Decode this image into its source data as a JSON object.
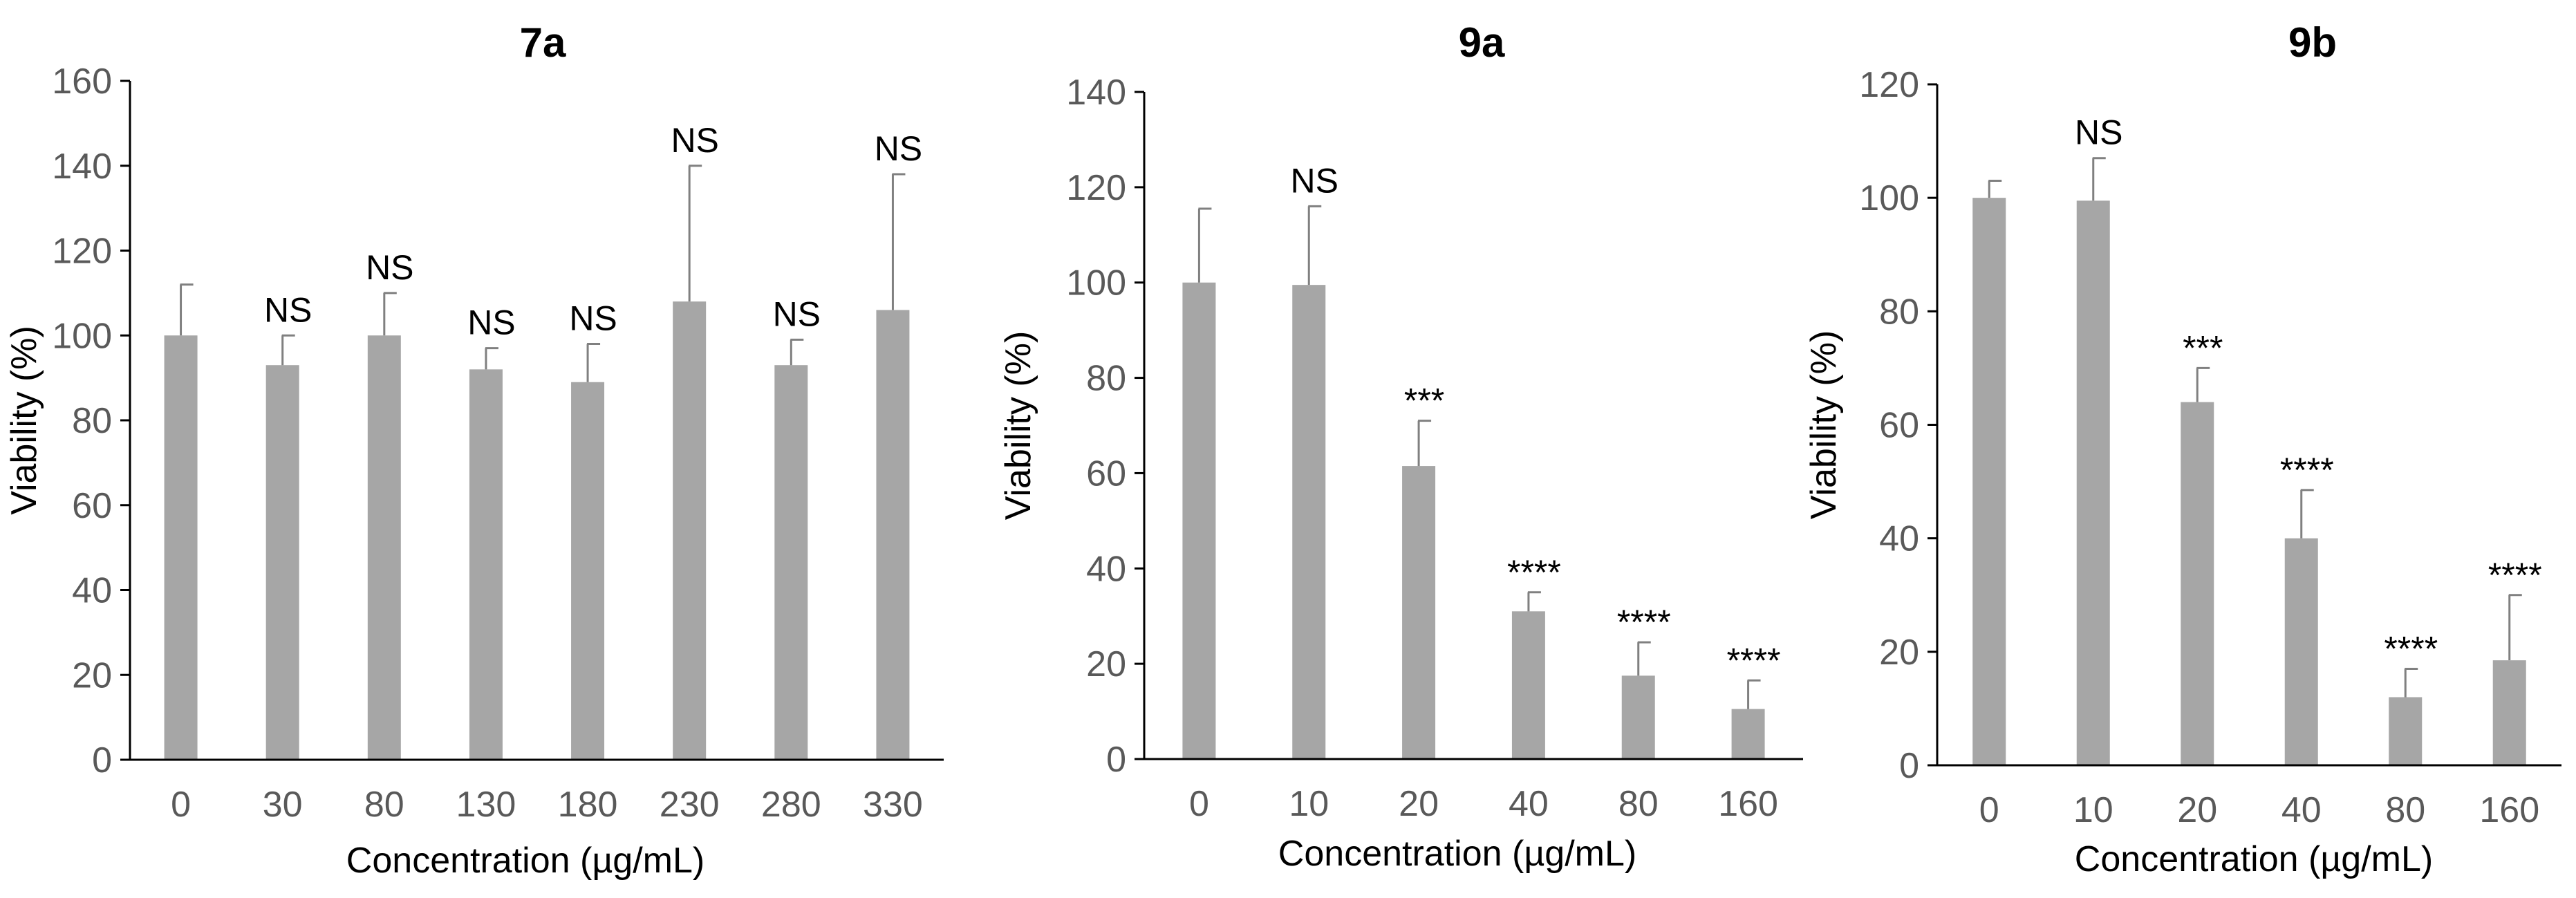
{
  "chart_data": [
    {
      "type": "bar",
      "title": "7a",
      "xlabel": "Concentration (µg/mL)",
      "ylabel": "Viability (%)",
      "ylim": [
        0,
        160
      ],
      "yticks": [
        0,
        20,
        40,
        60,
        80,
        100,
        120,
        140,
        160
      ],
      "categories": [
        "0",
        "30",
        "80",
        "130",
        "180",
        "230",
        "280",
        "330"
      ],
      "values": [
        100,
        93,
        100,
        92,
        89,
        108,
        93,
        106
      ],
      "errors": [
        12,
        7,
        10,
        5,
        9,
        32,
        6,
        32
      ],
      "annotations": [
        "",
        "NS",
        "NS",
        "NS",
        "NS",
        "NS",
        "NS",
        "NS"
      ],
      "bar_color": "#a6a6a6"
    },
    {
      "type": "bar",
      "title": "9a",
      "xlabel": "Concentration (µg/mL)",
      "ylabel": "Viability (%)",
      "ylim": [
        0,
        140
      ],
      "yticks": [
        0,
        20,
        40,
        60,
        80,
        100,
        120,
        140
      ],
      "categories": [
        "0",
        "10",
        "20",
        "40",
        "80",
        "160"
      ],
      "values": [
        100,
        99.5,
        61.5,
        31,
        17.5,
        10.5
      ],
      "errors": [
        15.5,
        16.5,
        9.5,
        4,
        7,
        6
      ],
      "annotations": [
        "",
        "NS",
        "***",
        "****",
        "****",
        "****"
      ],
      "bar_color": "#a6a6a6"
    },
    {
      "type": "bar",
      "title": "9b",
      "xlabel": "Concentration (µg/mL)",
      "ylabel": "Viability (%)",
      "ylim": [
        0,
        120
      ],
      "yticks": [
        0,
        20,
        40,
        60,
        80,
        100,
        120
      ],
      "categories": [
        "0",
        "10",
        "20",
        "40",
        "80",
        "160"
      ],
      "values": [
        100,
        99.5,
        64,
        40,
        12,
        18.5
      ],
      "errors": [
        3,
        7.5,
        6,
        8.5,
        5,
        11.5
      ],
      "annotations": [
        "",
        "NS",
        "***",
        "****",
        "****",
        "****"
      ],
      "bar_color": "#a6a6a6"
    }
  ]
}
